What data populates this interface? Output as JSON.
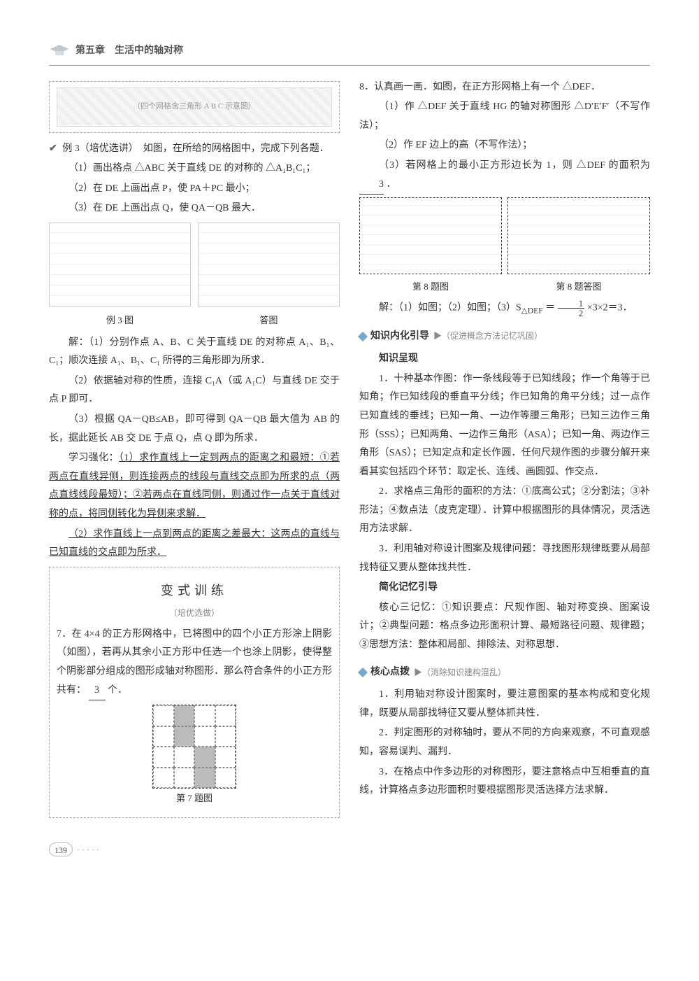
{
  "header": {
    "chapter": "第五章　生活中的轴对称"
  },
  "left": {
    "diagramsLabel": "（四个网格含三角形 A B C 示意图）",
    "ex3_lead": "例 3（培优选讲）　如图，在所给的网格图中，完成下列各题．",
    "ex3_1": "（1）画出格点 △ABC 关于直线 DE 的对称的 △A₁B₁C₁；",
    "ex3_2": "（2）在 DE 上画出点 P，使 PA＋PC 最小；",
    "ex3_3": "（3）在 DE 上画出点 Q，使 QA－QB 最大．",
    "figL": "例 3 图",
    "figR": "答图",
    "sol1": "解：（1）分别作点 A、B、C 关于直线 DE 的对称点 A₁、B₁、C₁；顺次连接 A₁、B₁、C₁ 所得的三角形即为所求．",
    "sol2": "（2）依据轴对称的性质，连接 C₁A（或 A₁C）与直线 DE 交于点 P 即可．",
    "sol3": "（3）根据 QA－QB≤AB，即可得到 QA－QB 最大值为 AB 的长，据此延长 AB 交 DE 于点 Q，点 Q 即为所求．",
    "learn0": "学习强化：",
    "learn1": "（1）求作直线上一定到两点的距离之和最短：①若两点在直线异侧，则连接两点的线段与直线交点即为所求的点（两点直线线段最短）；②若两点在直线同侧，则通过作一点关于直线对称的点，将同侧转化为异侧来求解．",
    "learn2": "（2）求作直线上一点到两点的距离之差最大：这两点的直线与已知直线的交点即为所求．",
    "variantTitle": "变式训练",
    "variantSub": "（培优选做）",
    "q7_text": "7．在 4×4 的正方形网格中，已将图中的四个小正方形涂上阴影（如图），若再从其余小正方形中任选一个也涂上阴影，使得整个阴影部分组成的图形成轴对称图形．那么符合条件的小正方形共有：",
    "q7_blank": "3",
    "q7_unit": "个．",
    "q7_cap": "第 7 题图",
    "q7_shaded": [
      1,
      5,
      10,
      14
    ]
  },
  "right": {
    "q8_lead": "8．认真画一画．如图，在正方形网格上有一个 △DEF．",
    "q8_1": "（1）作 △DEF 关于直线 HG 的轴对称图形 △D′E′F′（不写作法）；",
    "q8_2": "（2）作 EF 边上的高（不写作法）；",
    "q8_3a": "（3）若网格上的最小正方形边长为 1，则 △DEF 的面积为",
    "q8_blank": "3",
    "q8_3b": "．",
    "q8_capL": "第 8 题图",
    "q8_capR": "第 8 题答图",
    "q8_sol_a": "解：（1）如图；（2）如图；（3）S",
    "q8_sol_sub": "△DEF",
    "q8_sol_eq": " ＝ ",
    "q8_frac_num": "1",
    "q8_frac_den": "2",
    "q8_sol_b": " ×3×2＝3．",
    "sec1_name": "知识内化引导",
    "sec1_sub": "▶（促进概念方法记忆巩固）",
    "sec1_heading": "知识呈现",
    "k1": "1．十种基本作图：作一条线段等于已知线段；作一个角等于已知角；作已知线段的垂直平分线；作已知角的角平分线；过一点作已知直线的垂线；已知一角、一边作等腰三角形；已知三边作三角形（SSS）；已知两角、一边作三角形（ASA）；已知一角、两边作三角形（SAS）；已知定点和定长作圆．任何尺规作图的步骤分解开来看其实包括四个环节：取定长、连线、画圆弧、作交点．",
    "k2": "2．求格点三角形的面积的方法：①底高公式；②分割法；③补形法；④数点法（皮克定理）．计算中根据图形的具体情况，灵活选用方法求解．",
    "k3": "3．利用轴对称设计图案及规律问题：寻找图形规律既要从局部找特征又要从整体找共性．",
    "mem_heading": "简化记忆引导",
    "mem": "核心三记忆：①知识要点：尺规作图、轴对称变换、图案设计；②典型问题：格点多边形面积计算、最短路径问题、规律题；③思想方法：整体和局部、排除法、对称思想．",
    "sec2_name": "核心点拨",
    "sec2_sub": "▶（消除知识建构混乱）",
    "c1": "1．利用轴对称设计图案时，要注意图案的基本构成和变化规律，既要从局部找特征又要从整体抓共性．",
    "c2": "2．判定图形的对称轴时，要从不同的方向来观察，不可直观感知，容易误判、漏判．",
    "c3": "3．在格点中作多边形的对称图形，要注意格点中互相垂直的直线，计算格点多边形面积时要根据图形灵活选择方法求解．"
  },
  "pageNumber": "139"
}
